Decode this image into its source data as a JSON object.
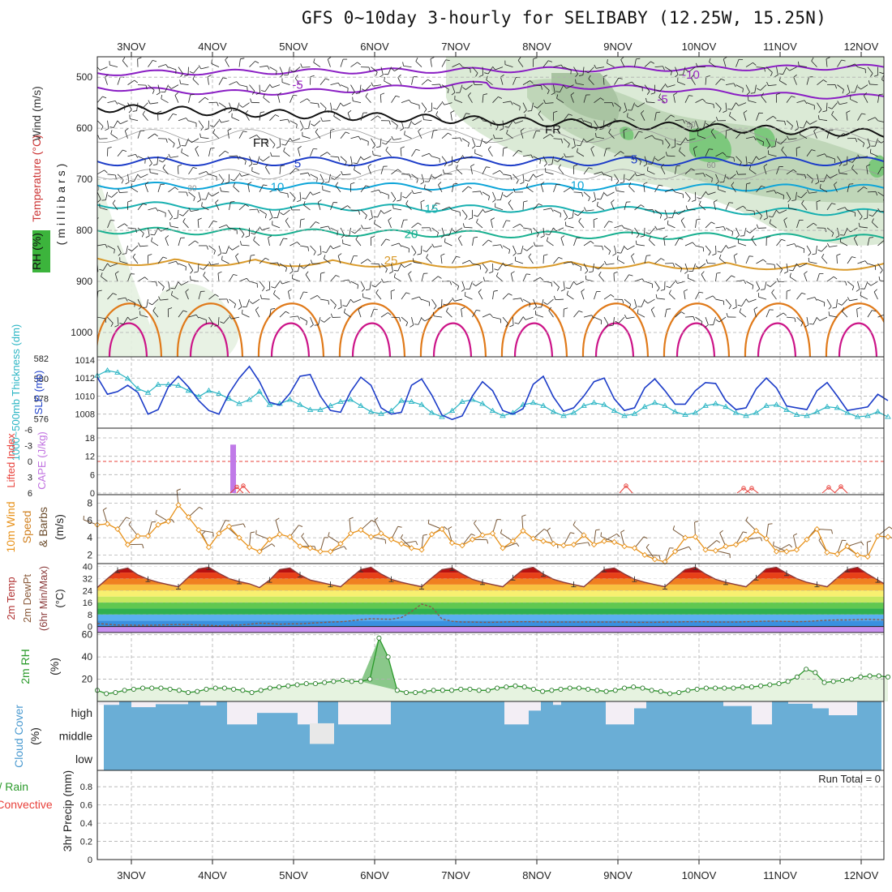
{
  "chart_data": {
    "type": "meteogram",
    "title": "GFS 0~10day 3-hourly for SELIBABY (12.25W, 15.25N)",
    "x_labels": [
      "3NOV",
      "4NOV",
      "5NOV",
      "6NOV",
      "7NOV",
      "8NOV",
      "9NOV",
      "10NOV",
      "11NOV",
      "12NOV"
    ],
    "x_range_days": [
      0.58,
      10.28
    ],
    "colors": {
      "grid": "#b0b0b0",
      "tsl": "#2bb5c4",
      "slp": "#1c3cc8",
      "wind": "#e8921a",
      "rh": "#2a9a2a",
      "cloud": "#6aaed6",
      "cape": "#c07ae8",
      "li": "#e8403a"
    },
    "panels": [
      {
        "id": "upper-air",
        "ylabel_parts": [
          {
            "text": "Wind (m/s)",
            "color": "#333333"
          },
          {
            "text": "Temperature (°C)",
            "color": "#cc3333"
          }
        ],
        "ylabel2": "(millibars)",
        "rh_label": "RH (%)",
        "ylim": [
          1000,
          460
        ],
        "yticks": [
          "500",
          "600",
          "700",
          "800",
          "900",
          "1000"
        ],
        "yvals": [
          500,
          600,
          700,
          800,
          900,
          1000
        ],
        "isotherm_labels": [
          {
            "text": "-10",
            "day": 7.9,
            "p": 495,
            "color": "#9a22c4"
          },
          {
            "text": "-5",
            "day": 3.05,
            "p": 515,
            "color": "#9a22c4"
          },
          {
            "text": "-5",
            "day": 7.55,
            "p": 543,
            "color": "#9a22c4"
          },
          {
            "text": "FR",
            "day": 2.6,
            "p": 628,
            "color": "#111111"
          },
          {
            "text": "FR",
            "day": 6.2,
            "p": 602,
            "color": "#111111"
          },
          {
            "text": "5",
            "day": 3.05,
            "p": 669,
            "color": "#1c3cc8"
          },
          {
            "text": "5",
            "day": 7.2,
            "p": 661,
            "color": "#1c3cc8"
          },
          {
            "text": "10",
            "day": 2.8,
            "p": 715,
            "color": "#0ea5d8"
          },
          {
            "text": "10",
            "day": 6.5,
            "p": 712,
            "color": "#0ea5d8"
          },
          {
            "text": "15",
            "day": 4.7,
            "p": 758,
            "color": "#18b0b0"
          },
          {
            "text": "20",
            "day": 4.45,
            "p": 807,
            "color": "#18b090"
          },
          {
            "text": "25",
            "day": 4.2,
            "p": 859,
            "color": "#d99a2a"
          },
          {
            "text": "30",
            "day": 0.55,
            "p": 715,
            "color": "#888888"
          },
          {
            "text": "30",
            "day": 1.75,
            "p": 715,
            "color": "#888888"
          },
          {
            "text": "50",
            "day": 7.9,
            "p": 590,
            "color": "#888888"
          },
          {
            "text": "60",
            "day": 8.15,
            "p": 670,
            "color": "#888888"
          }
        ]
      },
      {
        "id": "pressure",
        "ylabel_left": "1000~500mb Thickness (dm)",
        "ylabel_right": "SLP (mb)",
        "thk_ticks": [
          "582",
          "580",
          "578",
          "576"
        ],
        "thk_vals": [
          582,
          580,
          578,
          576
        ],
        "slp_ticks": [
          "1014",
          "1012",
          "1010",
          "1008"
        ],
        "slp_vals": [
          1014,
          1012,
          1010,
          1008
        ],
        "slp_series": [
          1012.1,
          1010.2,
          1010.5,
          1011.2,
          1010.4,
          1008.0,
          1008.5,
          1011.0,
          1012.2,
          1011.0,
          1009.5,
          1008.4,
          1008.0,
          1010.3,
          1012.0,
          1013.3,
          1011.6,
          1009.3,
          1009.0,
          1010.3,
          1012.2,
          1012.4,
          1010.0,
          1008.4,
          1008.2,
          1010.5,
          1012.1,
          1011.2,
          1008.7,
          1008.0,
          1008.2,
          1011.2,
          1011.9,
          1010.1,
          1007.9,
          1007.4,
          1007.8,
          1010.0,
          1011.6,
          1010.6,
          1008.4,
          1008.0,
          1008.6,
          1011.3,
          1012.2,
          1009.9,
          1008.3,
          1008.7,
          1010.0,
          1011.6,
          1012.0,
          1009.7,
          1008.4,
          1008.7,
          1010.9,
          1011.9,
          1010.6,
          1009.1,
          1009.1,
          1010.6,
          1011.5,
          1011.4,
          1009.5,
          1008.5,
          1008.7,
          1010.8,
          1012.0,
          1010.9,
          1008.9,
          1008.7,
          1008.5,
          1010.6,
          1011.5,
          1010.0,
          1008.4,
          1008.6,
          1008.8,
          1010.2,
          1009.5
        ],
        "thk_series": [
          580.3,
          580.8,
          580.6,
          580.0,
          579.0,
          578.6,
          579.4,
          579.4,
          579.3,
          578.8,
          578.2,
          578.8,
          578.5,
          578.0,
          577.5,
          577.9,
          578.7,
          577.4,
          577.5,
          577.9,
          577.4,
          576.9,
          576.9,
          577.3,
          577.7,
          577.9,
          577.3,
          576.7,
          576.5,
          576.8,
          577.8,
          577.7,
          577.4,
          576.6,
          576.2,
          576.8,
          577.7,
          577.9,
          577.5,
          576.8,
          576.3,
          576.6,
          577.4,
          577.6,
          577.3,
          576.7,
          576.3,
          576.6,
          577.3,
          577.6,
          577.4,
          576.8,
          576.3,
          576.5,
          577.2,
          577.6,
          577.3,
          576.7,
          576.4,
          576.6,
          577.3,
          577.5,
          577.2,
          576.6,
          576.3,
          576.6,
          577.3,
          577.4,
          576.9,
          576.4,
          576.3,
          576.7,
          577.2,
          577.1,
          576.6,
          576.2,
          576.3,
          576.7,
          576.2
        ]
      },
      {
        "id": "instability",
        "ylabel_left": "Lifted Index",
        "ylabel_right": "CAPE (J/kg)",
        "li_ticks": [
          "-6",
          "-3",
          "0",
          "3",
          "6"
        ],
        "li_vals": [
          -6,
          -3,
          0,
          3,
          6
        ],
        "cape_ticks": [
          "18",
          "12",
          "6",
          "0"
        ],
        "cape_vals": [
          18,
          12,
          6,
          0
        ],
        "cape_bar": {
          "day": 2.25,
          "value": 15.8
        },
        "li_blips": [
          {
            "day": 2.3,
            "value": 3.8
          },
          {
            "day": 2.38,
            "value": 4.5
          },
          {
            "day": 7.1,
            "value": 4.5
          },
          {
            "day": 8.55,
            "value": 3.0
          },
          {
            "day": 8.65,
            "value": 3.0
          },
          {
            "day": 9.6,
            "value": 3.5
          },
          {
            "day": 9.75,
            "value": 4.0
          }
        ]
      },
      {
        "id": "surface-wind",
        "ylabel_parts": [
          "10m Wind",
          "Speed",
          "& Barbs",
          "(m/s)"
        ],
        "ylim": [
          1,
          9
        ],
        "yticks": [
          "8",
          "6",
          "4",
          "2"
        ],
        "yvals": [
          8,
          6,
          4,
          2
        ],
        "speed_series": [
          5.5,
          5.6,
          5.0,
          3.2,
          4.2,
          4.2,
          5.5,
          5.9,
          7.8,
          6.4,
          4.9,
          2.9,
          4.5,
          5.3,
          4.0,
          2.9,
          2.4,
          3.8,
          4.4,
          4.1,
          3.0,
          2.8,
          2.4,
          2.4,
          3.3,
          4.5,
          4.9,
          4.1,
          4.5,
          3.8,
          3.3,
          2.8,
          2.6,
          4.4,
          5.0,
          3.4,
          3.1,
          3.8,
          4.3,
          4.5,
          2.8,
          3.6,
          4.8,
          3.9,
          3.6,
          3.3,
          3.1,
          3.2,
          4.3,
          3.2,
          3.6,
          3.5,
          3.0,
          2.8,
          2.0,
          1.5,
          1.2,
          2.4,
          4.0,
          4.1,
          2.6,
          2.5,
          3.0,
          3.2,
          3.8,
          4.8,
          3.9,
          2.4,
          2.4,
          2.6,
          3.8,
          5.0,
          2.3,
          2.1,
          3.0,
          2.0,
          1.8,
          4.2,
          4.1
        ]
      },
      {
        "id": "surface-temp",
        "ylabel_parts": [
          "2m Temp",
          "2m DewPt",
          "(6hr Min/Max)",
          "(°C)"
        ],
        "ylim": [
          -4,
          42
        ],
        "yticks": [
          "40",
          "32",
          "24",
          "16",
          "8",
          "0"
        ],
        "yvals": [
          40,
          32,
          24,
          16,
          8,
          0
        ],
        "temp_series": [
          26.0,
          32.0,
          37.5,
          39.0,
          34.5,
          31.5,
          29.5,
          28.0,
          26.5,
          33.0,
          38.5,
          39.5,
          35.5,
          32.0,
          30.0,
          28.5,
          26.0,
          31.0,
          38.0,
          39.0,
          34.5,
          31.0,
          29.5,
          28.0,
          26.5,
          32.5,
          38.0,
          39.5,
          35.0,
          31.5,
          29.5,
          28.0,
          26.5,
          32.5,
          38.0,
          39.0,
          35.0,
          31.5,
          29.5,
          28.0,
          26.5,
          32.5,
          38.0,
          39.5,
          35.0,
          31.5,
          29.5,
          28.0,
          26.5,
          32.5,
          38.0,
          39.0,
          35.0,
          31.5,
          29.5,
          28.0,
          26.5,
          32.5,
          38.0,
          39.5,
          35.0,
          31.5,
          29.5,
          28.0,
          26.5,
          32.5,
          38.5,
          39.5,
          35.5,
          32.0,
          29.5,
          28.0,
          26.5,
          32.5,
          38.0,
          39.5,
          35.0,
          31.0,
          27.0
        ],
        "dew_series": [
          2.0,
          1.5,
          1.0,
          1.0,
          0.8,
          0.8,
          1.0,
          1.2,
          1.3,
          1.3,
          1.0,
          0.8,
          0.5,
          0.8,
          1.0,
          1.5,
          2.2,
          2.0,
          1.6,
          1.8,
          1.8,
          2.2,
          2.6,
          3.0,
          3.2,
          3.8,
          4.6,
          5.2,
          5.0,
          4.8,
          6.0,
          10.0,
          15.0,
          13.0,
          5.0,
          3.5,
          3.0,
          3.0,
          2.8,
          2.8,
          3.0,
          3.2,
          3.2,
          3.2,
          3.0,
          3.0,
          3.0,
          3.0,
          3.0,
          3.0,
          3.0,
          3.0,
          3.0,
          2.8,
          2.8,
          2.8,
          3.0,
          3.0,
          3.2,
          3.2,
          3.2,
          3.0,
          3.0,
          3.0,
          3.2,
          3.4,
          3.6,
          3.6,
          3.4,
          3.2,
          3.4,
          3.8,
          4.2,
          4.4,
          4.4,
          4.6,
          4.8,
          4.6,
          4.2
        ]
      },
      {
        "id": "surface-rh",
        "ylabel_parts": [
          "2m RH",
          "(%)"
        ],
        "ylim": [
          0,
          62
        ],
        "yticks": [
          "60",
          "40",
          "20"
        ],
        "yvals": [
          60,
          40,
          20
        ],
        "rh_series": [
          10,
          7,
          8,
          10,
          11,
          12,
          12,
          12,
          11,
          10,
          8,
          9,
          11,
          12,
          12,
          11,
          10,
          8,
          10,
          12,
          13,
          14,
          15,
          16,
          16,
          17,
          18,
          19,
          18,
          18,
          20,
          57,
          40,
          10,
          8,
          8,
          9,
          10,
          10,
          10,
          11,
          11,
          10,
          10,
          12,
          13,
          14,
          13,
          11,
          9,
          10,
          11,
          12,
          12,
          11,
          10,
          9,
          10,
          12,
          13,
          12,
          10,
          9,
          7,
          8,
          10,
          11,
          12,
          12,
          12,
          12,
          13,
          13,
          14,
          15,
          16,
          18,
          22,
          29,
          26,
          17,
          18,
          19,
          20,
          22,
          23,
          23,
          22
        ]
      },
      {
        "id": "cloud",
        "ylabel_parts": [
          "Cloud Cover",
          "(%)"
        ],
        "levels": [
          "high",
          "middle",
          "low"
        ],
        "high_gaps": [
          [
            0.6,
            0.85,
            0.15
          ],
          [
            1.0,
            1.3,
            0.25
          ],
          [
            1.3,
            1.7,
            0.12
          ],
          [
            1.85,
            2.05,
            0.18
          ],
          [
            2.18,
            2.55,
            1
          ],
          [
            2.55,
            3.05,
            0.5
          ],
          [
            3.05,
            3.3,
            1
          ],
          [
            3.55,
            4.2,
            1
          ],
          [
            5.6,
            5.9,
            1
          ],
          [
            5.9,
            6.05,
            0.4
          ],
          [
            6.2,
            6.3,
            0.15
          ],
          [
            6.85,
            7.2,
            1
          ],
          [
            7.2,
            7.35,
            0.3
          ],
          [
            8.3,
            8.65,
            0.2
          ],
          [
            8.65,
            8.9,
            1
          ],
          [
            9.1,
            9.4,
            0.1
          ],
          [
            9.4,
            9.6,
            0.3
          ],
          [
            9.6,
            9.95,
            0.6
          ]
        ],
        "mid_gaps": [
          [
            3.2,
            3.5,
            1
          ]
        ]
      },
      {
        "id": "precip",
        "ylabel_left": [
          "Total / Rain",
          "Convective"
        ],
        "ylabel_right": "3hr Precip (mm)",
        "ylim": [
          0,
          0.98
        ],
        "yticks": [
          "0.8",
          "0.6",
          "0.4",
          "0.2",
          "0"
        ],
        "yvals": [
          0.8,
          0.6,
          0.4,
          0.2,
          0
        ],
        "run_total": "Run Total = 0"
      }
    ]
  }
}
